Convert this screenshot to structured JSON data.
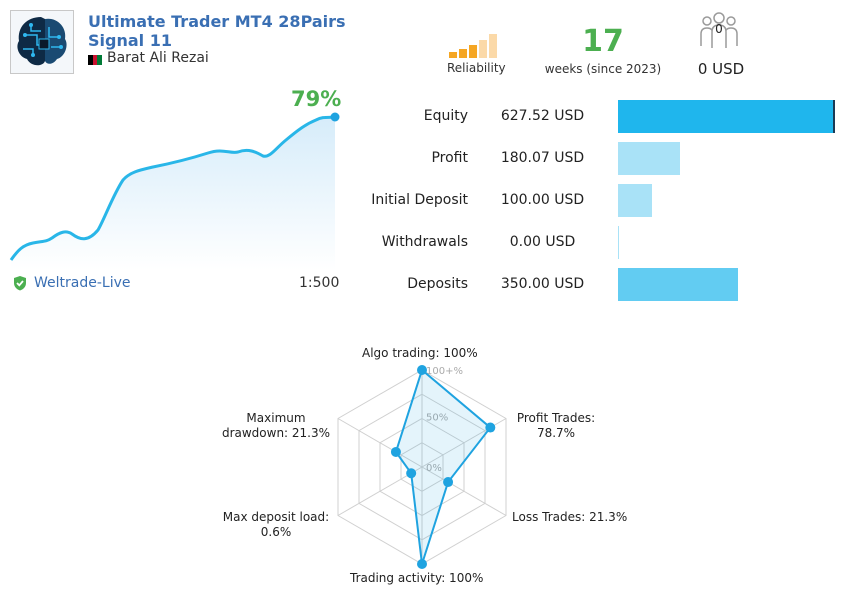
{
  "signal": {
    "title_line1": "Ultimate Trader MT4 28Pairs",
    "title_line2": "Signal 11",
    "author": "Barat Ali Rezai"
  },
  "header_stats": {
    "reliability_label": "Reliability",
    "weeks_value": "17",
    "weeks_label": "weeks (since 2023)",
    "subscribers_count": "0",
    "subscription_price": "0 USD"
  },
  "growth": {
    "percent": "79%",
    "broker": "Weltrade-Live",
    "leverage": "1:500"
  },
  "account_stats": [
    {
      "label": "Equity",
      "value": "627.52 USD",
      "fill": 1.0,
      "color": "#1fb6ed"
    },
    {
      "label": "Profit",
      "value": "180.07 USD",
      "fill": 0.287,
      "color": "#a9e2f7"
    },
    {
      "label": "Initial Deposit",
      "value": "100.00 USD",
      "fill": 0.159,
      "color": "#a9e2f7"
    },
    {
      "label": "Withdrawals",
      "value": "0.00 USD",
      "fill": 0.0,
      "color": "#a9e2f7"
    },
    {
      "label": "Deposits",
      "value": "350.00 USD",
      "fill": 0.558,
      "color": "#62ccf2"
    }
  ],
  "radar": {
    "axis_ticks": [
      "100+%",
      "50%",
      "0%"
    ],
    "labels": {
      "algo": "Algo trading: 100%",
      "profit_line1": "Profit Trades:",
      "profit_line2": "78.7%",
      "loss": "Loss Trades: 21.3%",
      "activity": "Trading activity: 100%",
      "load_line1": "Max deposit load:",
      "load_line2": "0.6%",
      "dd_line1": "Maximum",
      "dd_line2": "drawdown: 21.3%"
    },
    "values": [
      100,
      78.7,
      21.3,
      100,
      0.6,
      21.3
    ]
  },
  "colors": {
    "accent": "#1fa3e0",
    "green": "#4caf50",
    "link": "#3a6fb3",
    "reliability_on": "#f5a623",
    "reliability_off": "#fbd9a8"
  }
}
